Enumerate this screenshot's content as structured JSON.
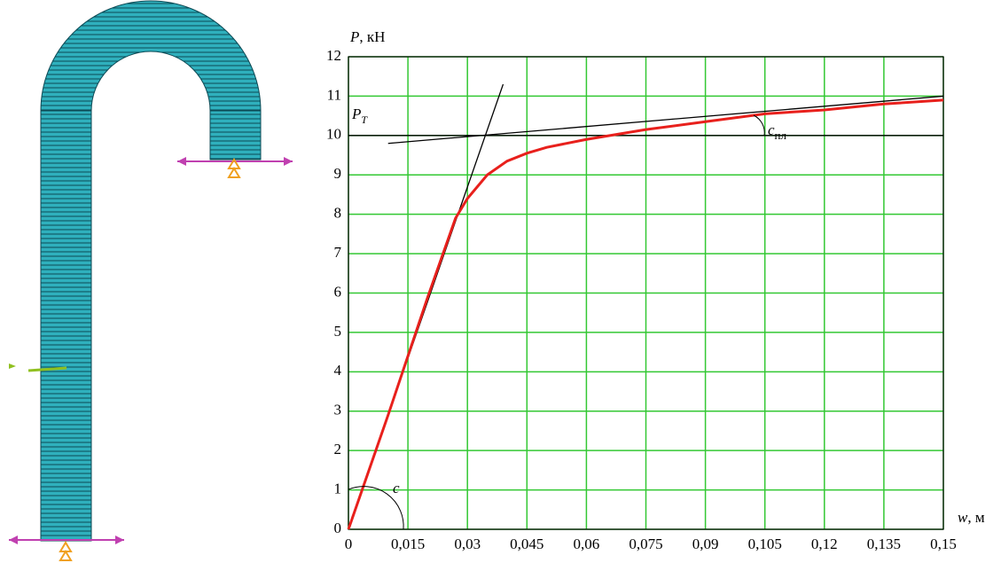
{
  "chart_data": {
    "type": "line",
    "y_label_symbol": "P",
    "y_label_unit": ", кН",
    "x_label_symbol": "w",
    "x_label_unit": ", м",
    "annotations": [
      {
        "text": "P",
        "subscript": "T"
      },
      {
        "text": "c",
        "subscript": "пл"
      },
      {
        "text": "c"
      }
    ],
    "series": [
      {
        "color": "#e8201c",
        "x": [
          0,
          0.01,
          0.02,
          0.027,
          0.03,
          0.035,
          0.04,
          0.045,
          0.05,
          0.06,
          0.075,
          0.09,
          0.105,
          0.12,
          0.135,
          0.15
        ],
        "values": [
          0,
          2.9,
          5.9,
          7.9,
          8.4,
          9.0,
          9.35,
          9.55,
          9.7,
          9.9,
          10.15,
          10.35,
          10.55,
          10.65,
          10.8,
          10.9
        ]
      },
      {
        "color": "#000000",
        "x": [
          0,
          0.039
        ],
        "values": [
          0,
          11.3
        ]
      },
      {
        "color": "#000000",
        "x": [
          0.01,
          0.15
        ],
        "values": [
          9.8,
          11.0
        ]
      },
      {
        "color": "#000000",
        "x": [
          0,
          0.15
        ],
        "values": [
          10,
          10
        ]
      }
    ],
    "xlim": [
      0,
      0.15
    ],
    "xticks": [
      0,
      {
        "value": 0.015,
        "label": "0,015"
      },
      {
        "value": 0.03,
        "label": "0,03"
      },
      {
        "value": 0.045,
        "label": "0,045"
      },
      {
        "value": 0.06,
        "label": "0,06"
      },
      {
        "value": 0.075,
        "label": "0,075"
      },
      {
        "value": 0.09,
        "label": "0,09"
      },
      {
        "value": 0.105,
        "label": "0,105"
      },
      {
        "value": 0.12,
        "label": "0,12"
      },
      {
        "value": 0.135,
        "label": "0,135"
      },
      {
        "value": 0.15,
        "label": "0,15"
      }
    ],
    "ylim": [
      0,
      12
    ],
    "yticks": [
      0,
      1,
      2,
      3,
      4,
      5,
      6,
      7,
      8,
      9,
      10,
      11,
      12
    ],
    "grid": true,
    "grid_color": "#33c833"
  }
}
